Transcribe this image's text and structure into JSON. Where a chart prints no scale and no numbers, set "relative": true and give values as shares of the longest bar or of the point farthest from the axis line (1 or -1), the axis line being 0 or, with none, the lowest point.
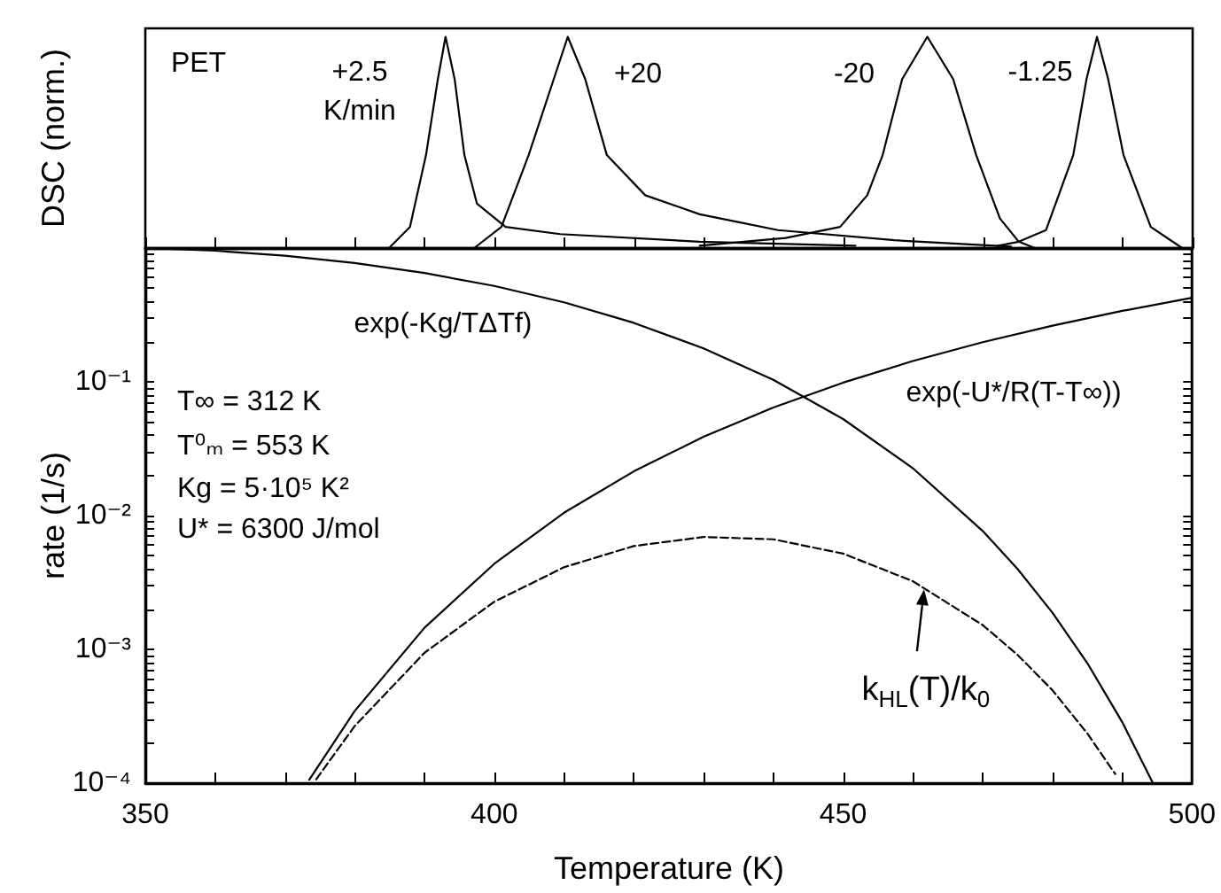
{
  "chart_data": [
    {
      "type": "line",
      "relative": true,
      "ylabel": "DSC (norm.)",
      "tick_labels": false,
      "marker": "none",
      "line_style": "solid",
      "xlim": [
        350,
        500
      ],
      "xticks": [
        350,
        {
          "value": 360,
          "label": null
        },
        {
          "value": 370,
          "label": null
        },
        {
          "value": 380,
          "label": null
        },
        {
          "value": 390,
          "label": null
        },
        400,
        {
          "value": 410,
          "label": null
        },
        {
          "value": 420,
          "label": null
        },
        {
          "value": 430,
          "label": null
        },
        {
          "value": 440,
          "label": null
        },
        450,
        {
          "value": 460,
          "label": null
        },
        {
          "value": 470,
          "label": null
        },
        {
          "value": 480,
          "label": null
        },
        {
          "value": 490,
          "label": null
        },
        500
      ],
      "series": [
        {
          "color": "#000000",
          "x": [
            384.9,
            387.9,
            390.2,
            391.9,
            393.0,
            394.3,
            395.7,
            397.5,
            401.6,
            409.4,
            429.4,
            451.7
          ],
          "values": [
            0,
            0.1,
            0.44,
            0.8,
            1,
            0.8,
            0.44,
            0.21,
            0.1,
            0.066,
            0.03,
            0.011
          ]
        },
        {
          "color": "#000000",
          "x": [
            397.1,
            401.0,
            404.9,
            408.5,
            410.5,
            413.0,
            416.1,
            421.6,
            429.4,
            440.6,
            457.3,
            474.0
          ],
          "values": [
            0,
            0.1,
            0.44,
            0.8,
            1,
            0.8,
            0.44,
            0.25,
            0.16,
            0.085,
            0.037,
            0.007
          ]
        },
        {
          "color": "#000000",
          "x": [
            429.4,
            441.7,
            449.5,
            453.4,
            455.6,
            458.4,
            462.0,
            465.7,
            469.0,
            472.4,
            475.1,
            477.4
          ],
          "values": [
            0.011,
            0.048,
            0.1,
            0.25,
            0.44,
            0.8,
            1,
            0.8,
            0.44,
            0.14,
            0.03,
            0
          ]
        },
        {
          "color": "#000000",
          "x": [
            472.0,
            475.1,
            479.0,
            482.9,
            484.8,
            486.3,
            487.9,
            490.1,
            494.0,
            498.5
          ],
          "values": [
            0.01,
            0.03,
            0.085,
            0.44,
            0.8,
            1,
            0.8,
            0.44,
            0.1,
            0
          ]
        }
      ],
      "annotations": [
        "PET",
        "+2.5\nK/min",
        "+20",
        "-20",
        "-1.25"
      ]
    },
    {
      "type": "line",
      "log": "y",
      "xlabel": "Temperature (K)",
      "ylabel": "rate (1/s)",
      "marker": "none",
      "xlim": [
        350,
        500
      ],
      "xticks": [
        350,
        {
          "value": 360,
          "label": null
        },
        {
          "value": 370,
          "label": null
        },
        {
          "value": 380,
          "label": null
        },
        {
          "value": 390,
          "label": null
        },
        400,
        {
          "value": 410,
          "label": null
        },
        {
          "value": 420,
          "label": null
        },
        {
          "value": 430,
          "label": null
        },
        {
          "value": 440,
          "label": null
        },
        450,
        {
          "value": 460,
          "label": null
        },
        {
          "value": 470,
          "label": null
        },
        {
          "value": 480,
          "label": null
        },
        {
          "value": 490,
          "label": null
        },
        500
      ],
      "ylim": [
        0.0001,
        1
      ],
      "yticks": [
        {
          "value": 0.0001,
          "label": "10⁻⁴"
        },
        {
          "value": 0.001,
          "label": "10⁻³"
        },
        {
          "value": 0.01,
          "label": "10⁻²"
        },
        {
          "value": 0.1,
          "label": "10⁻¹"
        },
        {
          "value": 1,
          "label": null
        },
        {
          "value": 0.0002,
          "label": null
        },
        {
          "value": 0.0003,
          "label": null
        },
        {
          "value": 0.0004,
          "label": null
        },
        {
          "value": 0.0005,
          "label": null
        },
        {
          "value": 0.0006,
          "label": null
        },
        {
          "value": 0.0007,
          "label": null
        },
        {
          "value": 0.0008,
          "label": null
        },
        {
          "value": 0.0009,
          "label": null
        },
        {
          "value": 0.002,
          "label": null
        },
        {
          "value": 0.003,
          "label": null
        },
        {
          "value": 0.004,
          "label": null
        },
        {
          "value": 0.005,
          "label": null
        },
        {
          "value": 0.006,
          "label": null
        },
        {
          "value": 0.007,
          "label": null
        },
        {
          "value": 0.008,
          "label": null
        },
        {
          "value": 0.009,
          "label": null
        },
        {
          "value": 0.02,
          "label": null
        },
        {
          "value": 0.03,
          "label": null
        },
        {
          "value": 0.04,
          "label": null
        },
        {
          "value": 0.05,
          "label": null
        },
        {
          "value": 0.06,
          "label": null
        },
        {
          "value": 0.07,
          "label": null
        },
        {
          "value": 0.08,
          "label": null
        },
        {
          "value": 0.09,
          "label": null
        },
        {
          "value": 0.2,
          "label": null
        },
        {
          "value": 0.3,
          "label": null
        },
        {
          "value": 0.4,
          "label": null
        },
        {
          "value": 0.5,
          "label": null
        },
        {
          "value": 0.6,
          "label": null
        },
        {
          "value": 0.7,
          "label": null
        },
        {
          "value": 0.8,
          "label": null
        },
        {
          "value": 0.9,
          "label": null
        }
      ],
      "series": [
        {
          "color": "#000000",
          "line_style": "solid",
          "x": [
            350,
            360,
            370,
            380,
            390,
            400,
            410,
            420,
            430,
            440,
            450,
            460,
            470,
            475,
            480,
            485,
            490,
            494.4
          ],
          "values": [
            1,
            0.955,
            0.877,
            0.773,
            0.651,
            0.521,
            0.393,
            0.276,
            0.178,
            0.1035,
            0.0527,
            0.0226,
            0.00768,
            0.00399,
            0.00188,
            0.000789,
            0.000286,
            0.0001
          ]
        },
        {
          "color": "#000000",
          "line_style": "solid",
          "x": [
            373.5,
            380,
            390,
            400,
            410,
            420,
            430,
            440,
            450,
            460,
            470,
            480,
            490,
            500
          ],
          "values": [
            0.000106,
            0.000346,
            0.00145,
            0.00436,
            0.0105,
            0.0214,
            0.0389,
            0.0643,
            0.0986,
            0.143,
            0.198,
            0.263,
            0.339,
            0.425
          ]
        },
        {
          "color": "#000000",
          "line_style": "dashed",
          "x": [
            374.5,
            380,
            390,
            400,
            410,
            420,
            430,
            440,
            450,
            460,
            470,
            475,
            480,
            485,
            489
          ],
          "values": [
            0.000107,
            0.000267,
            0.000942,
            0.00227,
            0.00411,
            0.00592,
            0.00692,
            0.00665,
            0.0052,
            0.00323,
            0.00152,
            0.00091,
            0.000495,
            0.000235,
            0.000117
          ]
        }
      ],
      "annotations": [
        "T∞ = 312 K",
        "T⁰ₘ = 553 K",
        "Kg = 5·10⁵ K²",
        "U* = 6300 J/mol",
        "exp(-Kg/TΔTf)",
        "exp(-U*/R(T-T∞))",
        {
          "text": "k$_{HL}$(T)/k$_{0}$",
          "x": 461.6,
          "y": 0.0029
        }
      ]
    }
  ]
}
